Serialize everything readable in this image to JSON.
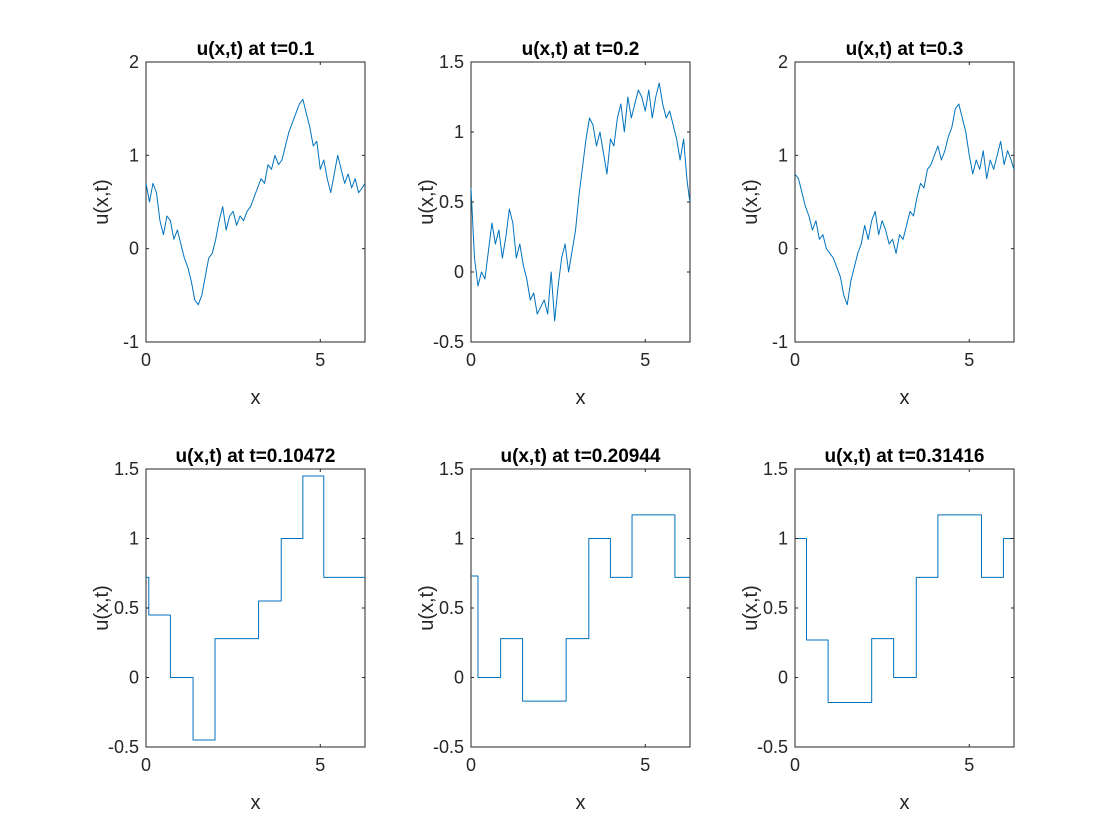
{
  "chart_data": [
    {
      "type": "line",
      "title": "u(x,t) at t=0.1",
      "xlabel": "x",
      "ylabel": "u(x,t)",
      "xlim": [
        0,
        6.2832
      ],
      "ylim": [
        -1,
        2
      ],
      "xticks": [
        0,
        5
      ],
      "yticks": [
        -1,
        0,
        1,
        2
      ],
      "xtick_labels": [
        "0",
        "5"
      ],
      "ytick_labels": [
        "-1",
        "0",
        "1",
        "2"
      ],
      "color": "#0072BD",
      "x": [
        0.0,
        0.1,
        0.2,
        0.3,
        0.4,
        0.5,
        0.6,
        0.7,
        0.8,
        0.9,
        1.0,
        1.1,
        1.2,
        1.3,
        1.4,
        1.5,
        1.6,
        1.7,
        1.8,
        1.9,
        2.0,
        2.1,
        2.2,
        2.3,
        2.4,
        2.5,
        2.6,
        2.7,
        2.8,
        2.9,
        3.0,
        3.1,
        3.2,
        3.3,
        3.4,
        3.5,
        3.6,
        3.7,
        3.8,
        3.9,
        4.0,
        4.1,
        4.2,
        4.3,
        4.4,
        4.5,
        4.6,
        4.7,
        4.8,
        4.9,
        5.0,
        5.1,
        5.2,
        5.3,
        5.4,
        5.5,
        5.6,
        5.7,
        5.8,
        5.9,
        6.0,
        6.1,
        6.2,
        6.28
      ],
      "y": [
        0.7,
        0.5,
        0.7,
        0.6,
        0.3,
        0.15,
        0.35,
        0.3,
        0.1,
        0.2,
        0.05,
        -0.1,
        -0.2,
        -0.35,
        -0.55,
        -0.6,
        -0.5,
        -0.3,
        -0.1,
        -0.05,
        0.1,
        0.3,
        0.45,
        0.2,
        0.35,
        0.4,
        0.25,
        0.35,
        0.3,
        0.4,
        0.45,
        0.55,
        0.65,
        0.75,
        0.7,
        0.9,
        0.85,
        1.0,
        0.9,
        0.95,
        1.1,
        1.25,
        1.35,
        1.45,
        1.55,
        1.6,
        1.45,
        1.3,
        1.1,
        1.15,
        0.85,
        0.95,
        0.75,
        0.6,
        0.8,
        1.0,
        0.85,
        0.7,
        0.8,
        0.65,
        0.75,
        0.6,
        0.65,
        0.7
      ]
    },
    {
      "type": "line",
      "title": "u(x,t) at t=0.2",
      "xlabel": "x",
      "ylabel": "u(x,t)",
      "xlim": [
        0,
        6.2832
      ],
      "ylim": [
        -0.5,
        1.5
      ],
      "xticks": [
        0,
        5
      ],
      "yticks": [
        -0.5,
        0,
        0.5,
        1,
        1.5
      ],
      "xtick_labels": [
        "0",
        "5"
      ],
      "ytick_labels": [
        "-0.5",
        "0",
        "0.5",
        "1",
        "1.5"
      ],
      "color": "#0072BD",
      "x": [
        0.0,
        0.1,
        0.2,
        0.3,
        0.4,
        0.5,
        0.6,
        0.7,
        0.8,
        0.9,
        1.0,
        1.1,
        1.2,
        1.3,
        1.4,
        1.5,
        1.6,
        1.7,
        1.8,
        1.9,
        2.0,
        2.1,
        2.2,
        2.3,
        2.4,
        2.5,
        2.6,
        2.7,
        2.8,
        2.9,
        3.0,
        3.1,
        3.2,
        3.3,
        3.4,
        3.5,
        3.6,
        3.7,
        3.8,
        3.9,
        4.0,
        4.1,
        4.2,
        4.3,
        4.4,
        4.5,
        4.6,
        4.7,
        4.8,
        4.9,
        5.0,
        5.1,
        5.2,
        5.3,
        5.4,
        5.5,
        5.6,
        5.7,
        5.8,
        5.9,
        6.0,
        6.1,
        6.2,
        6.28
      ],
      "y": [
        0.6,
        0.1,
        -0.1,
        0.0,
        -0.05,
        0.15,
        0.35,
        0.2,
        0.3,
        0.1,
        0.25,
        0.45,
        0.35,
        0.1,
        0.2,
        0.05,
        -0.05,
        -0.2,
        -0.15,
        -0.3,
        -0.25,
        -0.2,
        -0.3,
        0.0,
        -0.35,
        -0.1,
        0.1,
        0.2,
        0.0,
        0.15,
        0.3,
        0.55,
        0.75,
        0.95,
        1.1,
        1.05,
        0.9,
        1.0,
        0.85,
        0.7,
        0.95,
        0.9,
        1.1,
        1.2,
        1.0,
        1.25,
        1.1,
        1.2,
        1.3,
        1.25,
        1.15,
        1.3,
        1.1,
        1.25,
        1.35,
        1.2,
        1.1,
        1.15,
        1.05,
        0.95,
        0.8,
        0.95,
        0.65,
        0.5
      ]
    },
    {
      "type": "line",
      "title": "u(x,t) at t=0.3",
      "xlabel": "x",
      "ylabel": "u(x,t)",
      "xlim": [
        0,
        6.2832
      ],
      "ylim": [
        -1,
        2
      ],
      "xticks": [
        0,
        5
      ],
      "yticks": [
        -1,
        0,
        1,
        2
      ],
      "xtick_labels": [
        "0",
        "5"
      ],
      "ytick_labels": [
        "-1",
        "0",
        "1",
        "2"
      ],
      "color": "#0072BD",
      "x": [
        0.0,
        0.1,
        0.2,
        0.3,
        0.4,
        0.5,
        0.6,
        0.7,
        0.8,
        0.9,
        1.0,
        1.1,
        1.2,
        1.3,
        1.4,
        1.5,
        1.6,
        1.7,
        1.8,
        1.9,
        2.0,
        2.1,
        2.2,
        2.3,
        2.4,
        2.5,
        2.6,
        2.7,
        2.8,
        2.9,
        3.0,
        3.1,
        3.2,
        3.3,
        3.4,
        3.5,
        3.6,
        3.7,
        3.8,
        3.9,
        4.0,
        4.1,
        4.2,
        4.3,
        4.4,
        4.5,
        4.6,
        4.7,
        4.8,
        4.9,
        5.0,
        5.1,
        5.2,
        5.3,
        5.4,
        5.5,
        5.6,
        5.7,
        5.8,
        5.9,
        6.0,
        6.1,
        6.2,
        6.28
      ],
      "y": [
        0.8,
        0.75,
        0.6,
        0.45,
        0.35,
        0.2,
        0.3,
        0.1,
        0.15,
        0.0,
        -0.05,
        -0.1,
        -0.2,
        -0.3,
        -0.5,
        -0.6,
        -0.35,
        -0.2,
        -0.05,
        0.05,
        0.25,
        0.1,
        0.3,
        0.4,
        0.15,
        0.3,
        0.2,
        0.05,
        0.1,
        -0.05,
        0.15,
        0.1,
        0.25,
        0.4,
        0.35,
        0.55,
        0.7,
        0.65,
        0.85,
        0.9,
        1.0,
        1.1,
        0.95,
        1.05,
        1.2,
        1.3,
        1.5,
        1.55,
        1.4,
        1.25,
        1.0,
        0.8,
        0.95,
        0.85,
        1.05,
        0.75,
        0.95,
        0.85,
        1.0,
        1.15,
        0.9,
        1.05,
        0.95,
        0.85
      ]
    },
    {
      "type": "line",
      "title": "u(x,t) at t=0.10472",
      "xlabel": "x",
      "ylabel": "u(x,t)",
      "xlim": [
        0,
        6.2832
      ],
      "ylim": [
        -0.5,
        1.5
      ],
      "xticks": [
        0,
        5
      ],
      "yticks": [
        -0.5,
        0,
        0.5,
        1,
        1.5
      ],
      "xtick_labels": [
        "0",
        "5"
      ],
      "ytick_labels": [
        "-0.5",
        "0",
        "0.5",
        "1",
        "1.5"
      ],
      "color": "#0072BD",
      "x": [
        0.0,
        0.08,
        0.08,
        0.7,
        0.7,
        1.35,
        1.35,
        1.98,
        1.98,
        3.23,
        3.23,
        3.88,
        3.88,
        4.5,
        4.5,
        5.1,
        5.1,
        6.2832
      ],
      "y": [
        0.72,
        0.72,
        0.45,
        0.45,
        0.0,
        0.0,
        -0.45,
        -0.45,
        0.28,
        0.28,
        0.55,
        0.55,
        1.0,
        1.0,
        1.45,
        1.45,
        0.72,
        0.72
      ]
    },
    {
      "type": "line",
      "title": "u(x,t) at t=0.20944",
      "xlabel": "x",
      "ylabel": "u(x,t)",
      "xlim": [
        0,
        6.2832
      ],
      "ylim": [
        -0.5,
        1.5
      ],
      "xticks": [
        0,
        5
      ],
      "yticks": [
        -0.5,
        0,
        0.5,
        1,
        1.5
      ],
      "xtick_labels": [
        "0",
        "5"
      ],
      "ytick_labels": [
        "-0.5",
        "0",
        "0.5",
        "1",
        "1.5"
      ],
      "color": "#0072BD",
      "x": [
        0.0,
        0.2,
        0.2,
        0.85,
        0.85,
        1.48,
        1.48,
        2.73,
        2.73,
        3.38,
        3.38,
        4.0,
        4.0,
        4.62,
        4.62,
        5.85,
        5.85,
        6.2832
      ],
      "y": [
        0.73,
        0.73,
        0.0,
        0.0,
        0.28,
        0.28,
        -0.17,
        -0.17,
        0.28,
        0.28,
        1.0,
        1.0,
        0.72,
        0.72,
        1.17,
        1.17,
        0.72,
        0.72
      ]
    },
    {
      "type": "line",
      "title": "u(x,t) at t=0.31416",
      "xlabel": "x",
      "ylabel": "u(x,t)",
      "xlim": [
        0,
        6.2832
      ],
      "ylim": [
        -0.5,
        1.5
      ],
      "xticks": [
        0,
        5
      ],
      "yticks": [
        -0.5,
        0,
        0.5,
        1,
        1.5
      ],
      "xtick_labels": [
        "0",
        "5"
      ],
      "ytick_labels": [
        "-0.5",
        "0",
        "0.5",
        "1",
        "1.5"
      ],
      "color": "#0072BD",
      "x": [
        0.0,
        0.33,
        0.33,
        0.95,
        0.95,
        2.2,
        2.2,
        2.83,
        2.83,
        3.48,
        3.48,
        4.1,
        4.1,
        5.35,
        5.35,
        5.98,
        5.98,
        6.2832
      ],
      "y": [
        1.0,
        1.0,
        0.27,
        0.27,
        -0.18,
        -0.18,
        0.28,
        0.28,
        0.0,
        0.0,
        0.72,
        0.72,
        1.17,
        1.17,
        0.72,
        0.72,
        1.0,
        1.0
      ]
    }
  ]
}
